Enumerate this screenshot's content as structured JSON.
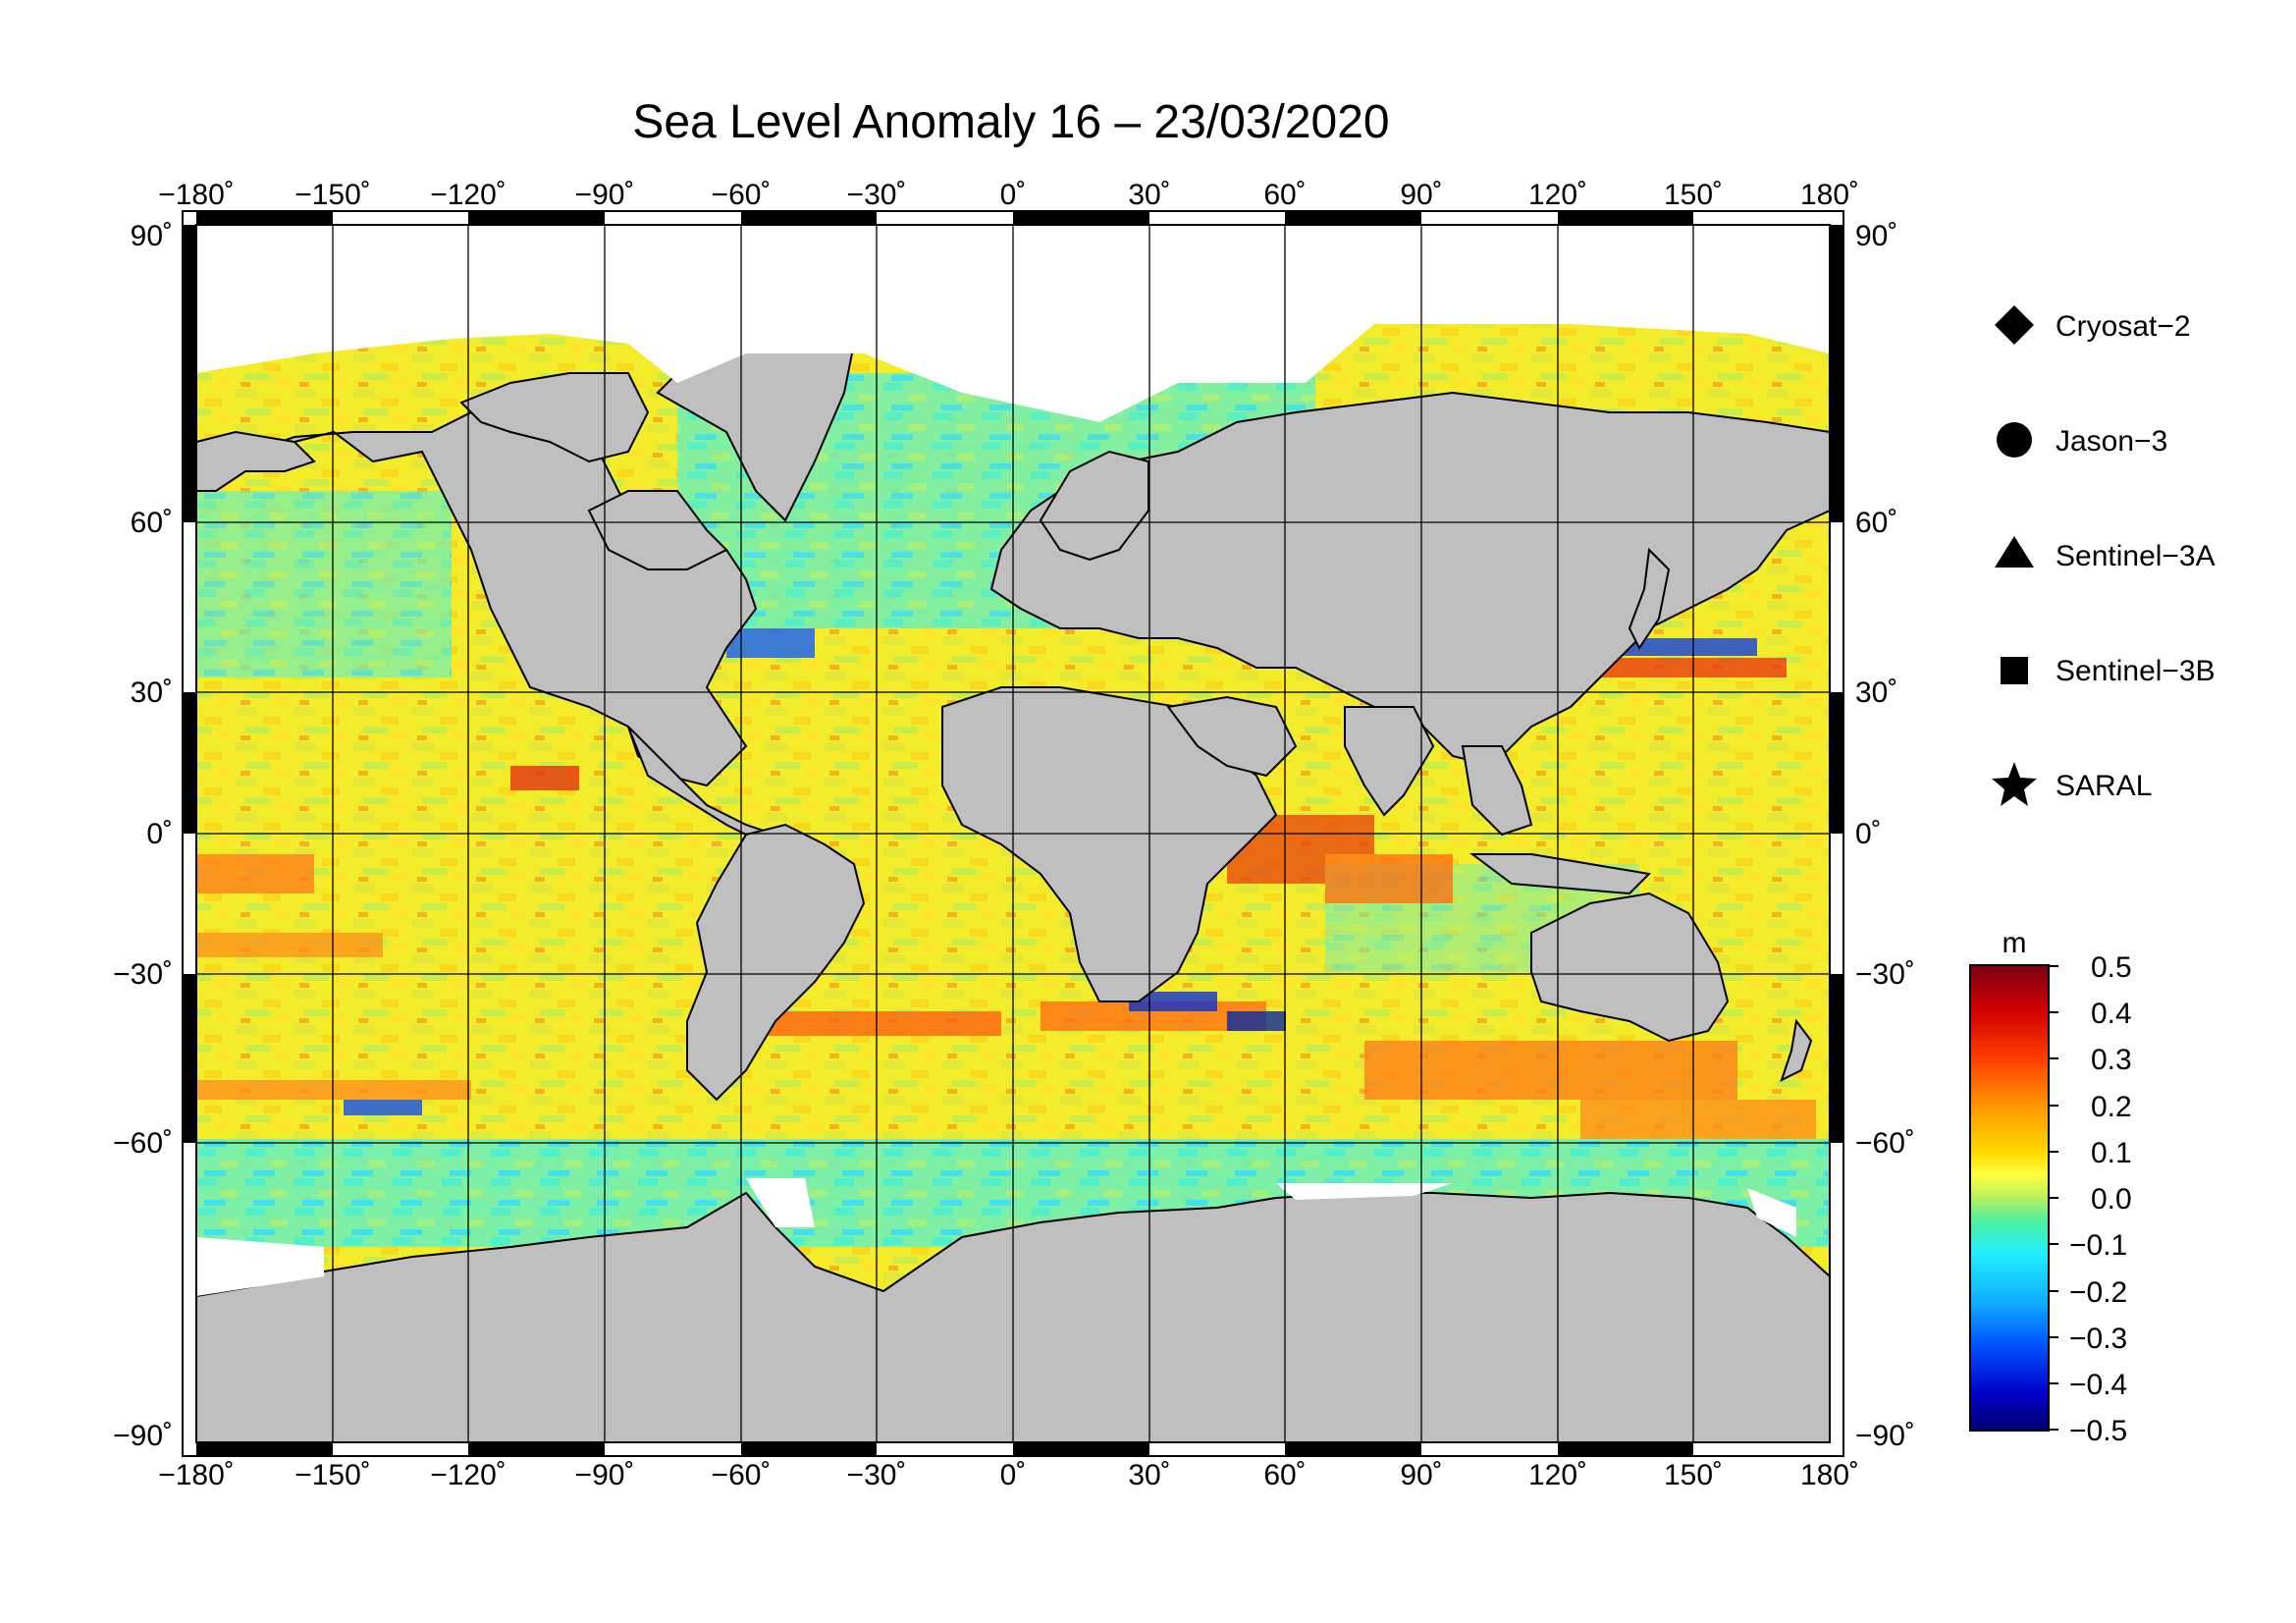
{
  "title": "Sea Level Anomaly 16 – 23/03/2020",
  "map": {
    "projection": "equirectangular",
    "lon_range": [
      -180,
      180
    ],
    "lat_range": [
      -90,
      90
    ],
    "lon_ticks": [
      "−180˚",
      "−150˚",
      "−120˚",
      "−90˚",
      "−60˚",
      "−30˚",
      "0˚",
      "30˚",
      "60˚",
      "90˚",
      "120˚",
      "150˚",
      "180˚"
    ],
    "lat_ticks_left": [
      "90˚",
      "60˚",
      "30˚",
      "0˚",
      "−30˚",
      "−60˚",
      "−90˚"
    ],
    "lat_ticks_right": [
      "90˚",
      "60˚",
      "30˚",
      "0˚",
      "−30˚",
      "−60˚",
      "−90˚"
    ],
    "grid": true,
    "land_color": "#bfbfbf",
    "ice_color": "#ffffff"
  },
  "legend": {
    "placement": "right",
    "items": [
      {
        "icon": "diamond-icon",
        "label": "Cryosat−2"
      },
      {
        "icon": "circle-icon",
        "label": "Jason−3"
      },
      {
        "icon": "triangle-icon",
        "label": "Sentinel−3A"
      },
      {
        "icon": "square-icon",
        "label": "Sentinel−3B"
      },
      {
        "icon": "star-icon",
        "label": "SARAL"
      }
    ]
  },
  "colorbar": {
    "unit": "m",
    "min": -0.5,
    "max": 0.5,
    "tick_labels": [
      "0.5",
      "0.4",
      "0.3",
      "0.2",
      "0.1",
      "0.0",
      "−0.1",
      "−0.2",
      "−0.3",
      "−0.4",
      "−0.5"
    ],
    "colors": [
      "#7a0010",
      "#d40000",
      "#ff3c00",
      "#ff9500",
      "#ffd800",
      "#ffff3c",
      "#b8f060",
      "#50f0a0",
      "#20f0ff",
      "#10b0ff",
      "#0050ff",
      "#0000c8",
      "#000070"
    ]
  }
}
